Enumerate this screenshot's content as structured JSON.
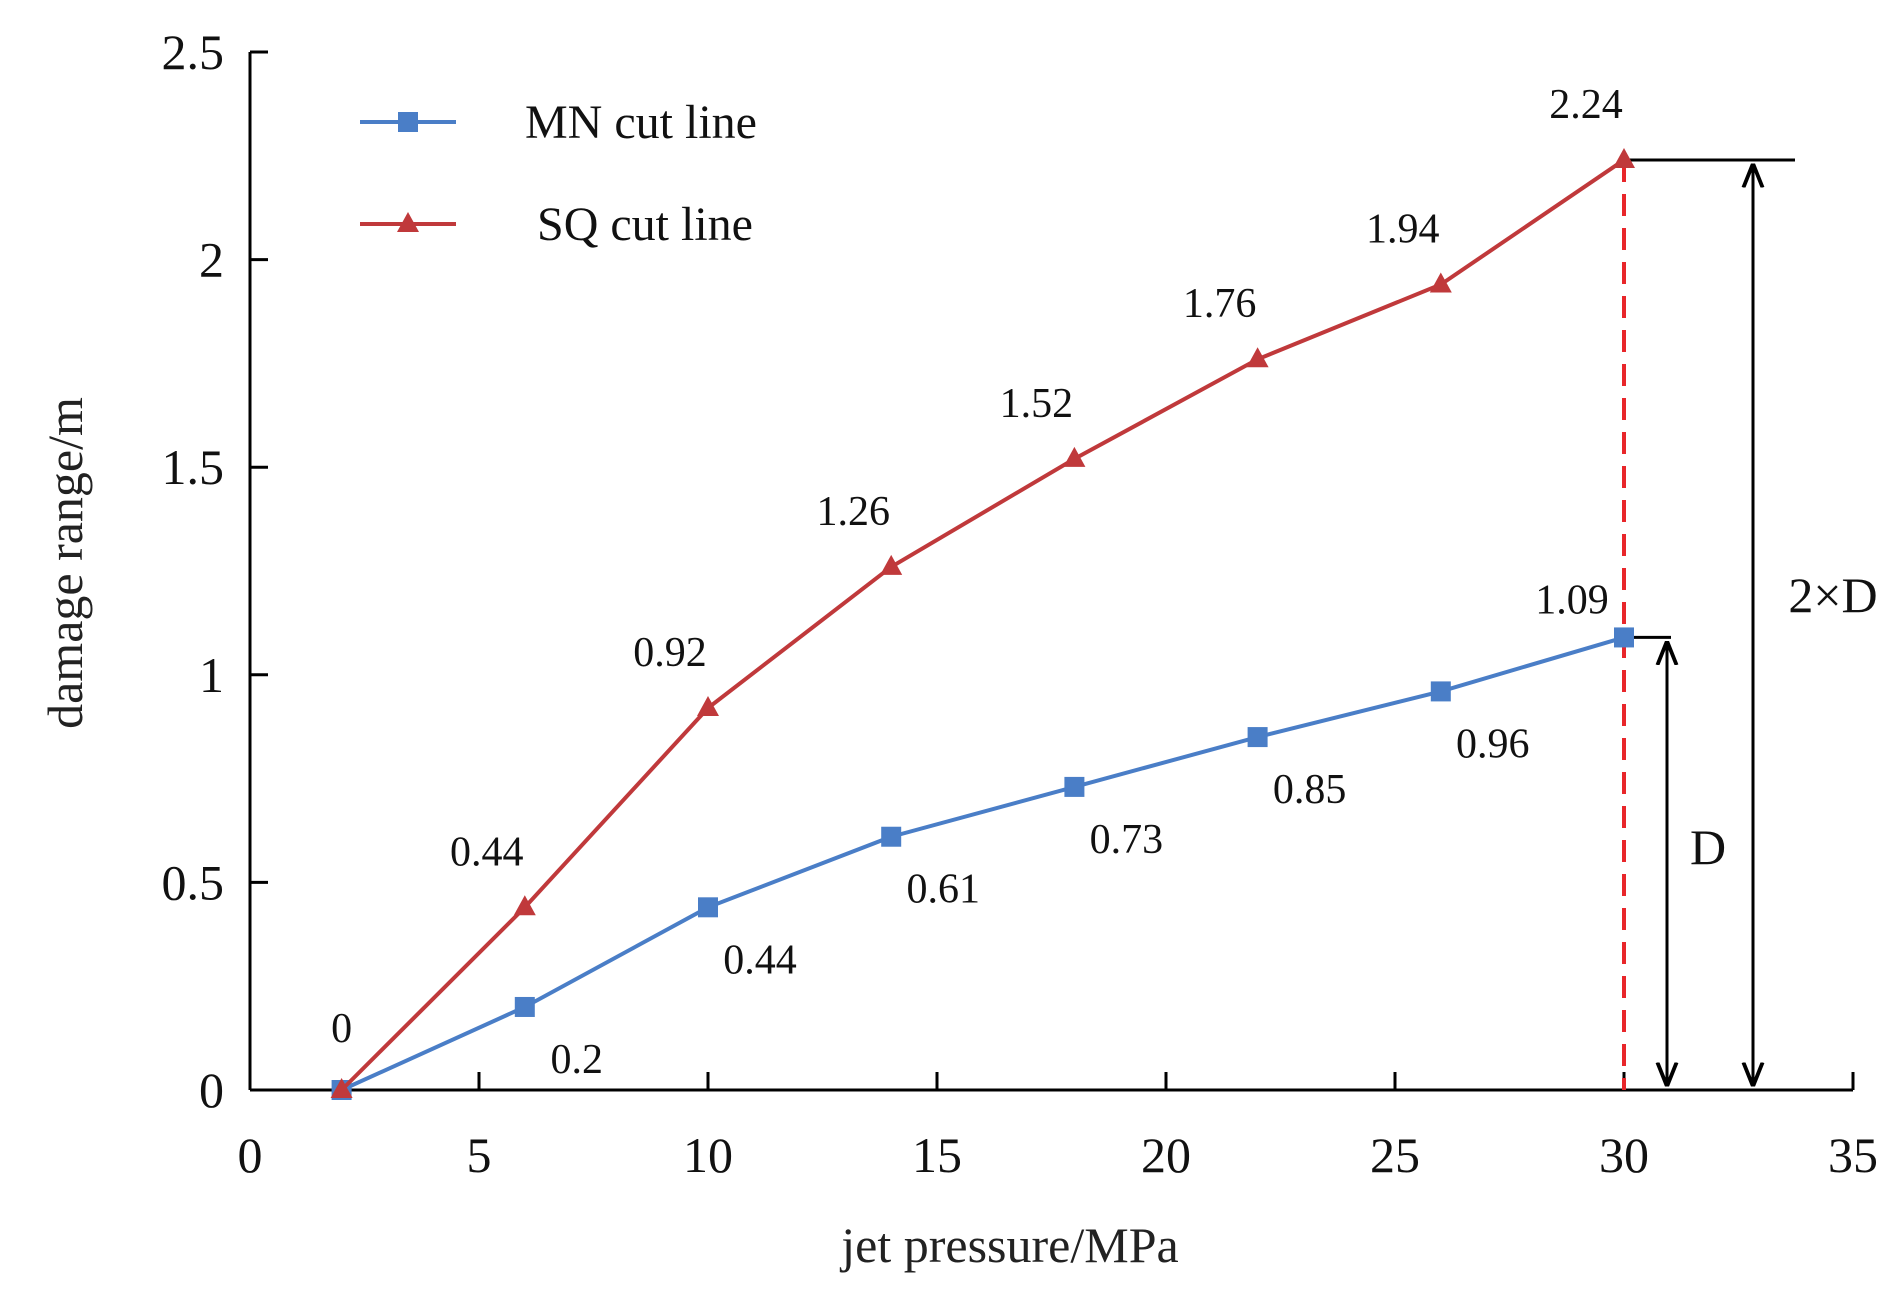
{
  "chart_data": {
    "type": "line",
    "xlabel": "jet pressure/MPa",
    "ylabel": "damage range/m",
    "xlim": [
      0,
      35
    ],
    "ylim": [
      0,
      2.5
    ],
    "xticks": [
      0,
      5,
      10,
      15,
      20,
      25,
      30,
      35
    ],
    "yticks": [
      0,
      0.5,
      1,
      1.5,
      2,
      2.5
    ],
    "xtick_labels": [
      "0",
      "5",
      "10",
      "15",
      "20",
      "25",
      "30",
      "35"
    ],
    "ytick_labels": [
      "0",
      "0.5",
      "1",
      "1.5",
      "2",
      "2.5"
    ],
    "grid": false,
    "legend_position": "top-left",
    "series": [
      {
        "name": "MN cut line",
        "color": "#4a7ec7",
        "marker": "square",
        "x": [
          2,
          6,
          10,
          14,
          18,
          22,
          26,
          30
        ],
        "values": [
          0,
          0.2,
          0.44,
          0.61,
          0.73,
          0.85,
          0.96,
          1.09
        ],
        "labels": [
          "",
          "0.2",
          "0.44",
          "0.61",
          "0.73",
          "0.85",
          "0.96",
          "1.09"
        ]
      },
      {
        "name": "SQ cut line",
        "color": "#c0393b",
        "marker": "triangle",
        "x": [
          2,
          6,
          10,
          14,
          18,
          22,
          26,
          30
        ],
        "values": [
          0,
          0.44,
          0.92,
          1.26,
          1.52,
          1.76,
          1.94,
          2.24
        ],
        "labels": [
          "0",
          "0.44",
          "0.92",
          "1.26",
          "1.52",
          "1.76",
          "1.94",
          "2.24"
        ]
      }
    ],
    "annotations": {
      "reference_line_x": 30,
      "reference_line_color": "#e8262a",
      "d_label": "D",
      "two_d_label": "2×D"
    }
  }
}
